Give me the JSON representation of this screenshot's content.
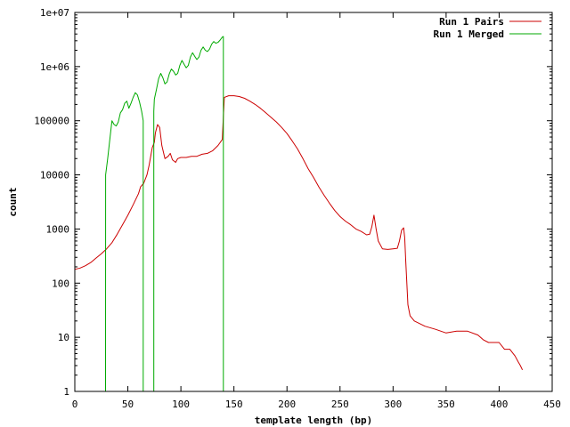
{
  "chart_data": {
    "type": "line",
    "title": "",
    "xlabel": "template length (bp)",
    "ylabel": "count",
    "xlim": [
      0,
      450
    ],
    "ylim": [
      1,
      10000000
    ],
    "y_scale": "log",
    "grid": false,
    "legend_position": "top-right",
    "x_ticks": [
      0,
      50,
      100,
      150,
      200,
      250,
      300,
      350,
      400,
      450
    ],
    "x_tick_labels": [
      "0",
      "50",
      "100",
      "150",
      "200",
      "250",
      "300",
      "350",
      "400",
      "450"
    ],
    "y_ticks": [
      1,
      10,
      100,
      1000,
      10000,
      100000,
      1000000,
      10000000
    ],
    "y_tick_labels": [
      "1",
      "10",
      "100",
      "1000",
      "10000",
      "100000",
      "1e+06",
      "1e+07"
    ],
    "series": [
      {
        "name": "Run 1 Pairs",
        "color": "#cc0000",
        "x": [
          0,
          5,
          10,
          15,
          20,
          25,
          30,
          35,
          40,
          45,
          50,
          55,
          60,
          62,
          65,
          68,
          70,
          72,
          73,
          75,
          76,
          78,
          80,
          82,
          85,
          88,
          90,
          92,
          95,
          97,
          100,
          105,
          110,
          115,
          120,
          125,
          130,
          135,
          139,
          140,
          141,
          145,
          150,
          155,
          160,
          165,
          170,
          175,
          180,
          185,
          190,
          195,
          200,
          205,
          210,
          215,
          220,
          225,
          230,
          235,
          240,
          245,
          250,
          255,
          260,
          265,
          270,
          275,
          278,
          280,
          282,
          284,
          286,
          290,
          295,
          300,
          304,
          306,
          308,
          310,
          311,
          312,
          314,
          316,
          320,
          330,
          340,
          350,
          360,
          370,
          380,
          385,
          390,
          400,
          405,
          410,
          415,
          418,
          420,
          422
        ],
        "values": [
          180,
          190,
          210,
          240,
          290,
          350,
          430,
          560,
          800,
          1200,
          1800,
          2800,
          4500,
          6000,
          7000,
          10000,
          15000,
          25000,
          32000,
          40000,
          60000,
          85000,
          75000,
          35000,
          20000,
          22000,
          25000,
          19000,
          17000,
          20000,
          21000,
          21000,
          22000,
          22000,
          24000,
          25000,
          28000,
          35000,
          45000,
          120000,
          270000,
          290000,
          290000,
          280000,
          260000,
          230000,
          200000,
          170000,
          140000,
          115000,
          95000,
          75000,
          58000,
          42000,
          30000,
          20000,
          13000,
          9000,
          6000,
          4200,
          3000,
          2200,
          1700,
          1400,
          1200,
          1000,
          900,
          780,
          800,
          1100,
          1800,
          1000,
          600,
          430,
          420,
          430,
          440,
          600,
          950,
          1050,
          700,
          250,
          40,
          25,
          20,
          16,
          14,
          12,
          13,
          13,
          11,
          9,
          8,
          8,
          6,
          6,
          4.5,
          3.5,
          3,
          2.5
        ]
      },
      {
        "name": "Run 1 Merged",
        "color": "#00aa00",
        "x": [
          29,
          29.01,
          31,
          33,
          35,
          37,
          39,
          41,
          43,
          45,
          47,
          49,
          51,
          53,
          55,
          57,
          59,
          61,
          63,
          64.5,
          64.51,
          74.5,
          74.51,
          75,
          77,
          79,
          81,
          83,
          85,
          87,
          89,
          91,
          93,
          95,
          97,
          99,
          101,
          103,
          105,
          107,
          109,
          111,
          113,
          115,
          117,
          119,
          121,
          123,
          125,
          127,
          129,
          131,
          133,
          135,
          137,
          139,
          140,
          140.01
        ],
        "values": [
          1,
          10000,
          20000,
          45000,
          100000,
          85000,
          80000,
          95000,
          140000,
          160000,
          210000,
          230000,
          170000,
          210000,
          270000,
          330000,
          300000,
          220000,
          150000,
          100000,
          1,
          1,
          150000,
          250000,
          380000,
          600000,
          750000,
          620000,
          480000,
          520000,
          730000,
          900000,
          820000,
          700000,
          750000,
          1050000,
          1300000,
          1100000,
          950000,
          1050000,
          1500000,
          1800000,
          1550000,
          1350000,
          1500000,
          2000000,
          2300000,
          2000000,
          1900000,
          2100000,
          2600000,
          2900000,
          2700000,
          2800000,
          3100000,
          3500000,
          3600000,
          1
        ]
      }
    ]
  }
}
